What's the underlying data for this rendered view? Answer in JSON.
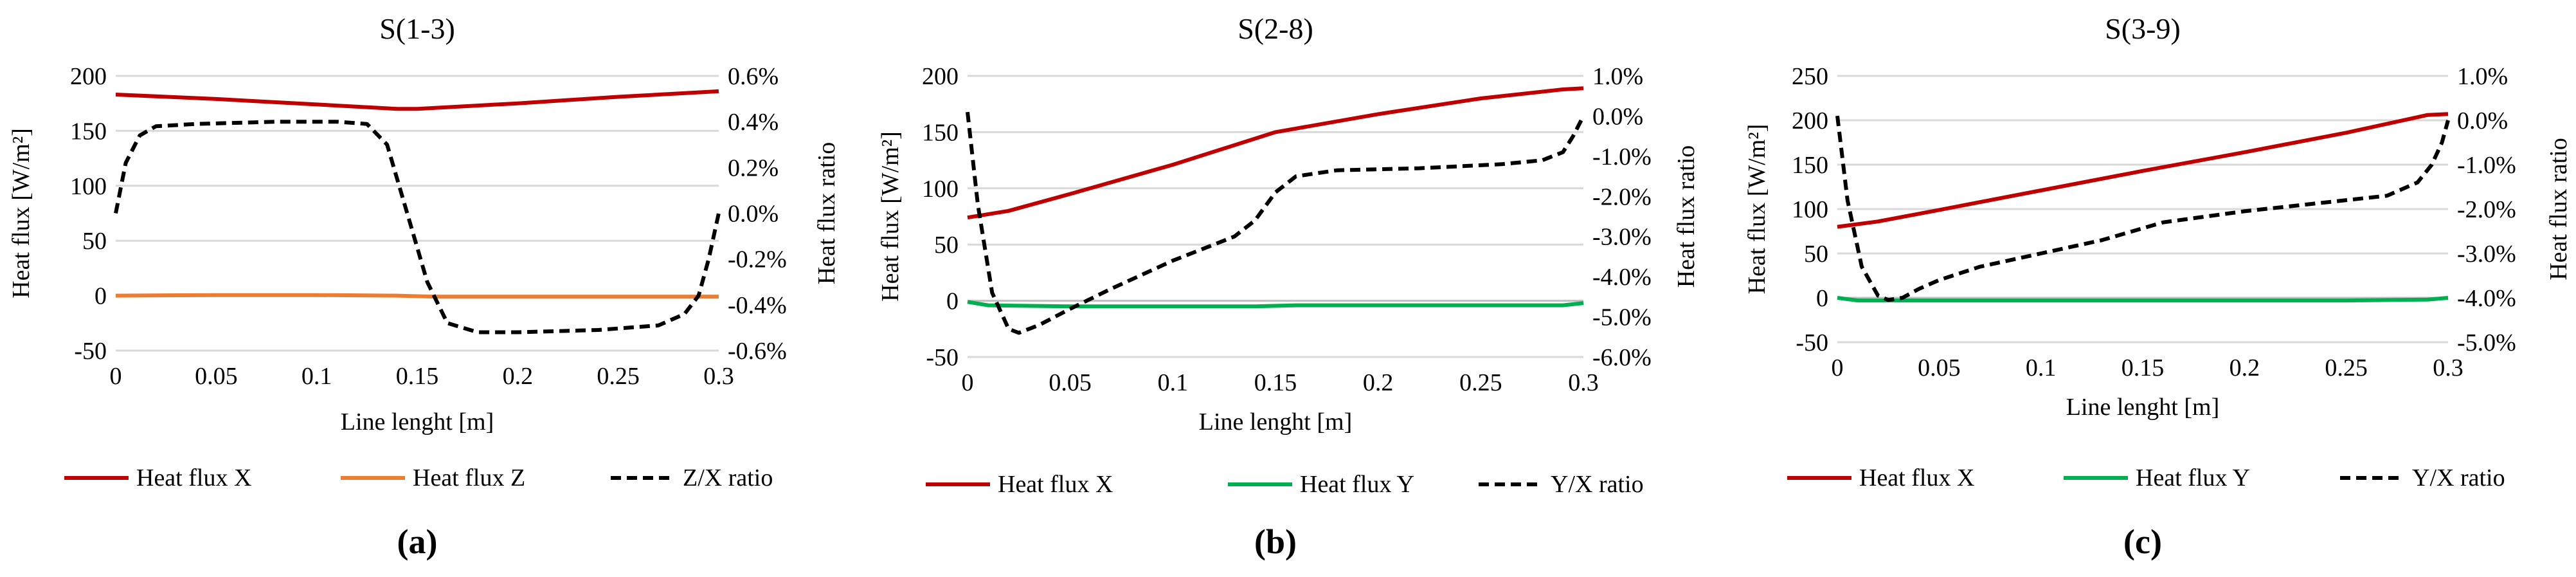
{
  "chart_data": [
    {
      "type": "line",
      "title": "S(1-3)",
      "panel_label": "(a)",
      "xlabel": "Line lenght [m]",
      "ylabel": "Heat flux [W/m²]",
      "y2label": "Heat flux ratio",
      "xlim": [
        0,
        0.3
      ],
      "ylim": [
        -50,
        200
      ],
      "y2lim": [
        -0.6,
        0.6
      ],
      "x_ticks": [
        "0",
        "0.05",
        "0.1",
        "0.15",
        "0.2",
        "0.25",
        "0.3"
      ],
      "y_ticks": [
        "200",
        "150",
        "100",
        "50",
        "0",
        "-50"
      ],
      "y2_ticks": [
        "0.6%",
        "0.4%",
        "0.2%",
        "0.0%",
        "-0.2%",
        "-0.4%",
        "-0.6%"
      ],
      "series": [
        {
          "name": "Heat flux X",
          "axis": "left",
          "color": "#c00000",
          "dash": false,
          "x": [
            0,
            0.05,
            0.1,
            0.14,
            0.15,
            0.2,
            0.25,
            0.3
          ],
          "y": [
            183,
            179,
            174,
            170,
            170,
            175,
            181,
            186
          ]
        },
        {
          "name": "Heat flux Z",
          "axis": "left",
          "color": "#ed7d31",
          "dash": false,
          "x": [
            0,
            0.05,
            0.1,
            0.14,
            0.16,
            0.2,
            0.25,
            0.3
          ],
          "y": [
            0,
            0.5,
            0.5,
            0,
            -1,
            -1,
            -1,
            -1
          ]
        },
        {
          "name": "Z/X ratio",
          "axis": "right",
          "color": "#000000",
          "dash": true,
          "x": [
            0,
            0.005,
            0.012,
            0.02,
            0.04,
            0.08,
            0.11,
            0.125,
            0.135,
            0.145,
            0.155,
            0.165,
            0.18,
            0.2,
            0.24,
            0.27,
            0.283,
            0.29,
            0.295,
            0.3
          ],
          "y": [
            0.0,
            0.22,
            0.34,
            0.38,
            0.39,
            0.4,
            0.4,
            0.39,
            0.3,
            0.0,
            -0.3,
            -0.48,
            -0.52,
            -0.52,
            -0.51,
            -0.49,
            -0.44,
            -0.36,
            -0.2,
            0.0
          ]
        }
      ]
    },
    {
      "type": "line",
      "title": "S(2-8)",
      "panel_label": "(b)",
      "xlabel": "Line lenght [m]",
      "ylabel": "Heat flux [W/m²]",
      "y2label": "Heat flux ratio",
      "xlim": [
        0,
        0.3
      ],
      "ylim": [
        -50,
        200
      ],
      "y2lim": [
        -6,
        1
      ],
      "x_ticks": [
        "0",
        "0.05",
        "0.1",
        "0.15",
        "0.2",
        "0.25",
        "0.3"
      ],
      "y_ticks": [
        "200",
        "150",
        "100",
        "50",
        "0",
        "-50"
      ],
      "y2_ticks": [
        "1.0%",
        "0.0%",
        "-1.0%",
        "-2.0%",
        "-3.0%",
        "-4.0%",
        "-5.0%",
        "-6.0%"
      ],
      "series": [
        {
          "name": "Heat flux X",
          "axis": "left",
          "color": "#c00000",
          "dash": false,
          "x": [
            0,
            0.02,
            0.05,
            0.1,
            0.15,
            0.2,
            0.25,
            0.29,
            0.3
          ],
          "y": [
            74,
            80,
            95,
            121,
            150,
            166,
            180,
            188,
            189
          ]
        },
        {
          "name": "Heat flux Y",
          "axis": "left",
          "color": "#00b050",
          "dash": false,
          "x": [
            0,
            0.01,
            0.05,
            0.1,
            0.14,
            0.16,
            0.2,
            0.25,
            0.29,
            0.3
          ],
          "y": [
            -1,
            -4,
            -5,
            -5,
            -5,
            -4,
            -4,
            -4,
            -4,
            -2
          ]
        },
        {
          "name": "Y/X ratio",
          "axis": "right",
          "color": "#000000",
          "dash": true,
          "x": [
            0,
            0.005,
            0.012,
            0.02,
            0.025,
            0.035,
            0.05,
            0.07,
            0.1,
            0.13,
            0.14,
            0.15,
            0.16,
            0.18,
            0.22,
            0.26,
            0.28,
            0.29,
            0.295,
            0.3
          ],
          "y": [
            0.1,
            -2.2,
            -4.4,
            -5.3,
            -5.4,
            -5.2,
            -4.8,
            -4.3,
            -3.6,
            -3.0,
            -2.6,
            -1.9,
            -1.5,
            -1.35,
            -1.3,
            -1.2,
            -1.1,
            -0.9,
            -0.5,
            0.0
          ]
        }
      ]
    },
    {
      "type": "line",
      "title": "S(3-9)",
      "panel_label": "(c)",
      "xlabel": "Line lenght [m]",
      "ylabel": "Heat flux [W/m²]",
      "y2label": "Heat flux ratio",
      "xlim": [
        0,
        0.3
      ],
      "ylim": [
        -50,
        250
      ],
      "y2lim": [
        -5,
        1
      ],
      "x_ticks": [
        "0",
        "0.05",
        "0.1",
        "0.15",
        "0.2",
        "0.25",
        "0.3"
      ],
      "y_ticks": [
        "250",
        "200",
        "150",
        "100",
        "50",
        "0",
        "-50"
      ],
      "y2_ticks": [
        "1.0%",
        "0.0%",
        "-1.0%",
        "-2.0%",
        "-3.0%",
        "-4.0%",
        "-5.0%"
      ],
      "series": [
        {
          "name": "Heat flux X",
          "axis": "left",
          "color": "#c00000",
          "dash": false,
          "x": [
            0,
            0.02,
            0.05,
            0.1,
            0.15,
            0.2,
            0.25,
            0.29,
            0.3
          ],
          "y": [
            80,
            86,
            99,
            121,
            143,
            164,
            186,
            206,
            207
          ]
        },
        {
          "name": "Heat flux Y",
          "axis": "left",
          "color": "#00b050",
          "dash": false,
          "x": [
            0,
            0.01,
            0.05,
            0.1,
            0.15,
            0.2,
            0.25,
            0.29,
            0.3
          ],
          "y": [
            0,
            -3,
            -3,
            -3,
            -3,
            -3,
            -3,
            -2,
            0
          ]
        },
        {
          "name": "Y/X ratio",
          "axis": "right",
          "color": "#000000",
          "dash": true,
          "x": [
            0,
            0.005,
            0.012,
            0.02,
            0.025,
            0.032,
            0.04,
            0.05,
            0.07,
            0.1,
            0.13,
            0.16,
            0.2,
            0.24,
            0.27,
            0.285,
            0.292,
            0.297,
            0.3
          ],
          "y": [
            0.1,
            -1.8,
            -3.3,
            -3.95,
            -4.05,
            -4.0,
            -3.8,
            -3.6,
            -3.3,
            -3.0,
            -2.7,
            -2.3,
            -2.05,
            -1.85,
            -1.7,
            -1.4,
            -1.0,
            -0.5,
            0.0
          ]
        }
      ]
    }
  ]
}
